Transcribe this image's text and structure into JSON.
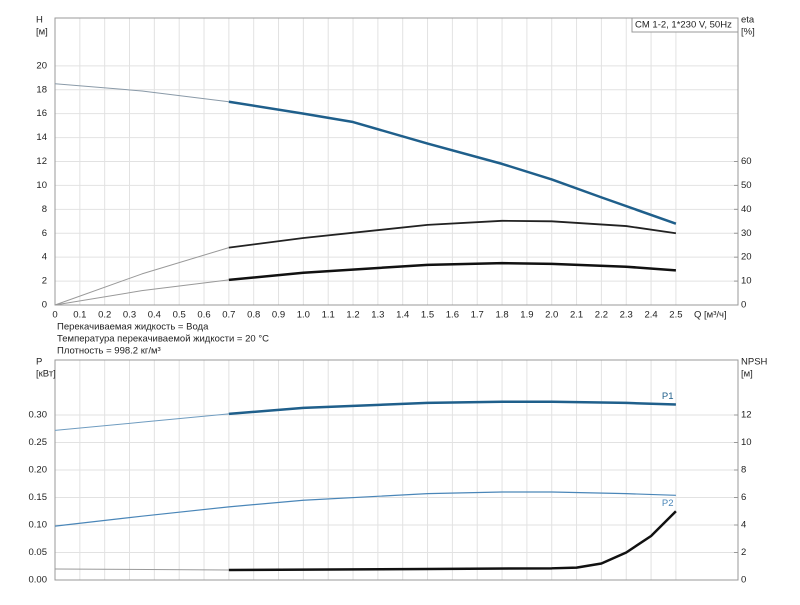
{
  "chart_data": [
    {
      "type": "line",
      "title": "CM 1-2, 1*230 V, 50Hz",
      "ylabel": "H",
      "yunit": "[м]",
      "y2label": "eta",
      "y2unit": "[%]",
      "xlabel": "Q [м³/ч]",
      "notes": [
        "Перекачиваемая жидкость = Вода",
        "Температура перекачиваемой жидкости = 20 °C",
        "Плотность = 998.2 кг/м³"
      ],
      "xlim": [
        0,
        2.75
      ],
      "ylim": [
        0,
        24
      ],
      "y2lim": [
        0,
        120
      ],
      "grid": true,
      "xticks": [
        0,
        0.1,
        0.2,
        0.3,
        0.4,
        0.5,
        0.6,
        0.7,
        0.8,
        0.9,
        {
          "value": 1,
          "label": "1.0"
        },
        1.1,
        1.2,
        1.3,
        1.4,
        1.5,
        1.6,
        1.7,
        1.8,
        1.9,
        {
          "value": 2,
          "label": "2.0"
        },
        2.1,
        2.2,
        2.3,
        2.4,
        2.5
      ],
      "yticks": [
        0,
        2,
        4,
        6,
        8,
        10,
        12,
        14,
        16,
        18,
        20
      ],
      "y2ticks": [
        0,
        10,
        20,
        30,
        40,
        50,
        60
      ],
      "series": [
        {
          "color": "#8a9aa8",
          "width": 1,
          "x": [
            0,
            0.35,
            0.7
          ],
          "values": [
            18.5,
            17.9,
            17.0
          ]
        },
        {
          "color": "#1f5f8b",
          "width": 2.5,
          "x": [
            0.7,
            1.0,
            1.2,
            1.5,
            1.8,
            2.0,
            2.2,
            2.5
          ],
          "values": [
            17.0,
            16.0,
            15.3,
            13.5,
            11.8,
            10.5,
            9.0,
            6.8
          ]
        },
        {
          "color": "#999999",
          "width": 1,
          "axis": "y2",
          "x": [
            0,
            0.35,
            0.7
          ],
          "values": [
            0,
            13,
            24
          ]
        },
        {
          "color": "#222222",
          "width": 1.8,
          "axis": "y2",
          "x": [
            0.7,
            1.0,
            1.5,
            1.8,
            2.0,
            2.3,
            2.5
          ],
          "values": [
            24,
            28,
            33.5,
            35.2,
            35,
            33,
            30
          ]
        },
        {
          "color": "#999999",
          "width": 1,
          "axis": "y2",
          "x": [
            0,
            0.35,
            0.7
          ],
          "values": [
            0,
            6,
            10.5
          ]
        },
        {
          "color": "#111111",
          "width": 2.5,
          "axis": "y2",
          "x": [
            0.7,
            1.0,
            1.5,
            1.8,
            2.0,
            2.3,
            2.5
          ],
          "values": [
            10.5,
            13.5,
            16.8,
            17.5,
            17.2,
            16,
            14.5
          ]
        }
      ]
    },
    {
      "type": "line",
      "ylabel": "P",
      "yunit": "[кВт]",
      "y2label": "NPSH",
      "y2unit": "[м]",
      "xlim": [
        0,
        2.75
      ],
      "ylim": [
        0,
        0.4
      ],
      "y2lim": [
        0,
        16
      ],
      "grid": true,
      "yticks": [
        {
          "value": 0,
          "label": "0.00"
        },
        0.05,
        {
          "value": 0.1,
          "label": "0.10"
        },
        0.15,
        {
          "value": 0.2,
          "label": "0.20"
        },
        0.25,
        {
          "value": 0.3,
          "label": "0.30"
        }
      ],
      "y2ticks": [
        0,
        2,
        4,
        6,
        8,
        10,
        12
      ],
      "series": [
        {
          "color": "#6f9cc0",
          "width": 1,
          "x": [
            0,
            0.35,
            0.7
          ],
          "values": [
            0.272,
            0.287,
            0.302
          ]
        },
        {
          "name": "P1",
          "color": "#1f5f8b",
          "width": 2.5,
          "x": [
            0.7,
            1.0,
            1.5,
            1.8,
            2.0,
            2.3,
            2.5
          ],
          "values": [
            0.302,
            0.313,
            0.322,
            0.324,
            0.324,
            0.322,
            0.319
          ]
        },
        {
          "name": "P2",
          "color": "#4a86b8",
          "width": 1.2,
          "x": [
            0,
            0.35,
            0.7,
            1.0,
            1.5,
            1.8,
            2.0,
            2.3,
            2.5
          ],
          "values": [
            0.098,
            0.116,
            0.133,
            0.145,
            0.157,
            0.16,
            0.16,
            0.157,
            0.154
          ]
        },
        {
          "color": "#999999",
          "width": 1,
          "axis": "y2",
          "x": [
            0,
            0.7
          ],
          "values": [
            0.8,
            0.73
          ]
        },
        {
          "color": "#111111",
          "width": 2.5,
          "axis": "y2",
          "x": [
            0.7,
            1.5,
            2.0,
            2.1,
            2.2,
            2.3,
            2.4,
            2.5
          ],
          "values": [
            0.73,
            0.8,
            0.85,
            0.9,
            1.2,
            2.0,
            3.2,
            5.0
          ]
        }
      ]
    }
  ]
}
